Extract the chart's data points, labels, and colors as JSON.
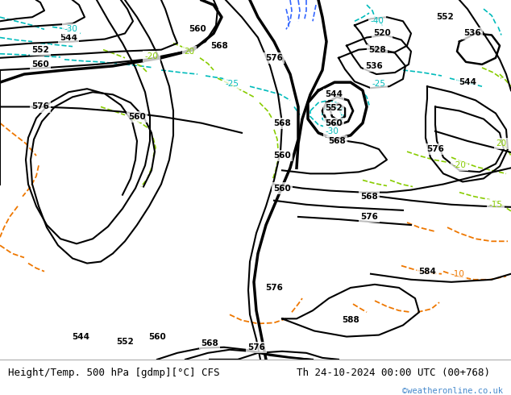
{
  "title_left": "Height/Temp. 500 hPa [gdmp][°C] CFS",
  "title_right": "Th 24-10-2024 00:00 UTC (00+768)",
  "watermark": "©weatheronline.co.uk",
  "bg_light_green": "#c8e6a0",
  "bg_grey": "#b8b8b8",
  "bg_white_grey": "#d8d8d8",
  "fig_width": 6.34,
  "fig_height": 4.9,
  "dpi": 100,
  "bottom_bar_color": "#ffffff",
  "title_fontsize": 9.0,
  "watermark_color": "#4488cc",
  "clr_black": "#000000",
  "clr_cyan": "#00bbbb",
  "clr_blue": "#3366ff",
  "clr_green_warm": "#88cc00",
  "clr_orange": "#ee7700",
  "label_fontsize": 7.5
}
